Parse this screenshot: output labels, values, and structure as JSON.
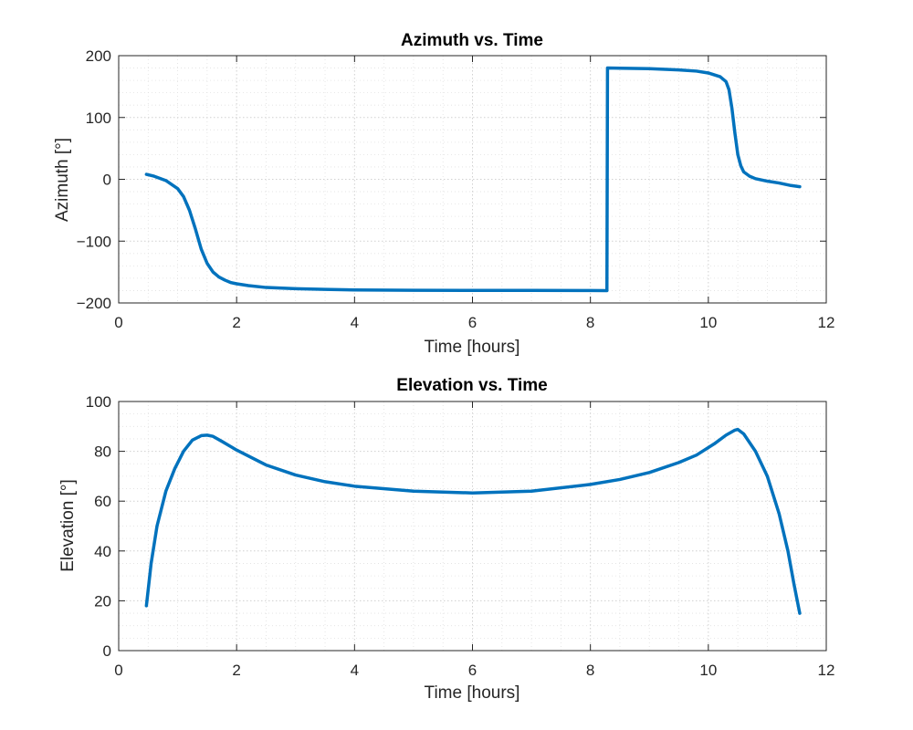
{
  "colors": {
    "series": "#0072BD",
    "axes": "#262626",
    "grid": "#d0d0d0"
  },
  "chart_data": [
    {
      "type": "line",
      "title": "Azimuth vs. Time",
      "xlabel": "Time [hours]",
      "ylabel": "Azimuth [°]",
      "xlim": [
        0,
        12
      ],
      "ylim": [
        -200,
        200
      ],
      "xticks": [
        0,
        2,
        4,
        6,
        8,
        10,
        12
      ],
      "yticks": [
        -200,
        -100,
        0,
        100,
        200
      ],
      "xminor": 0.5,
      "yminor": 20,
      "grid": true,
      "series": [
        {
          "x": [
            0.47,
            0.6,
            0.8,
            1.0,
            1.1,
            1.2,
            1.3,
            1.4,
            1.5,
            1.6,
            1.7,
            1.8,
            1.9,
            2.0,
            2.2,
            2.5,
            3.0,
            3.5,
            4.0,
            5.0,
            6.0,
            7.0,
            8.0,
            8.28,
            8.29,
            8.5,
            9.0,
            9.5,
            9.8,
            10.0,
            10.2,
            10.3,
            10.35,
            10.4,
            10.45,
            10.5,
            10.55,
            10.6,
            10.7,
            10.8,
            11.0,
            11.2,
            11.4,
            11.55
          ],
          "y": [
            8,
            5,
            -2,
            -15,
            -28,
            -50,
            -80,
            -113,
            -136,
            -150,
            -158,
            -163,
            -167,
            -169,
            -172,
            -175,
            -177,
            -178,
            -179,
            -179.5,
            -179.7,
            -179.8,
            -179.9,
            -180,
            180,
            179.8,
            179,
            177,
            175,
            172,
            166,
            158,
            145,
            115,
            75,
            40,
            22,
            12,
            5,
            1,
            -3,
            -6,
            -10,
            -12
          ]
        }
      ]
    },
    {
      "type": "line",
      "title": "Elevation vs. Time",
      "xlabel": "Time [hours]",
      "ylabel": "Elevation [°]",
      "xlim": [
        0,
        12
      ],
      "ylim": [
        0,
        100
      ],
      "xticks": [
        0,
        2,
        4,
        6,
        8,
        10,
        12
      ],
      "yticks": [
        0,
        20,
        40,
        60,
        80,
        100
      ],
      "xminor": 0.5,
      "yminor": 5,
      "grid": true,
      "series": [
        {
          "x": [
            0.47,
            0.55,
            0.65,
            0.8,
            0.95,
            1.1,
            1.25,
            1.4,
            1.5,
            1.6,
            1.75,
            2.0,
            2.5,
            3.0,
            3.5,
            4.0,
            5.0,
            6.0,
            7.0,
            8.0,
            8.5,
            9.0,
            9.5,
            9.8,
            10.1,
            10.3,
            10.45,
            10.5,
            10.6,
            10.8,
            11.0,
            11.2,
            11.35,
            11.45,
            11.55
          ],
          "y": [
            18,
            35,
            50,
            64,
            73,
            80,
            84.5,
            86.3,
            86.5,
            86,
            84,
            80.5,
            74.5,
            70.5,
            67.8,
            66,
            64,
            63.3,
            64,
            66.7,
            68.7,
            71.5,
            75.5,
            78.5,
            83,
            86.5,
            88.5,
            88.8,
            87,
            80,
            70,
            55,
            40,
            27,
            15
          ]
        }
      ]
    }
  ]
}
